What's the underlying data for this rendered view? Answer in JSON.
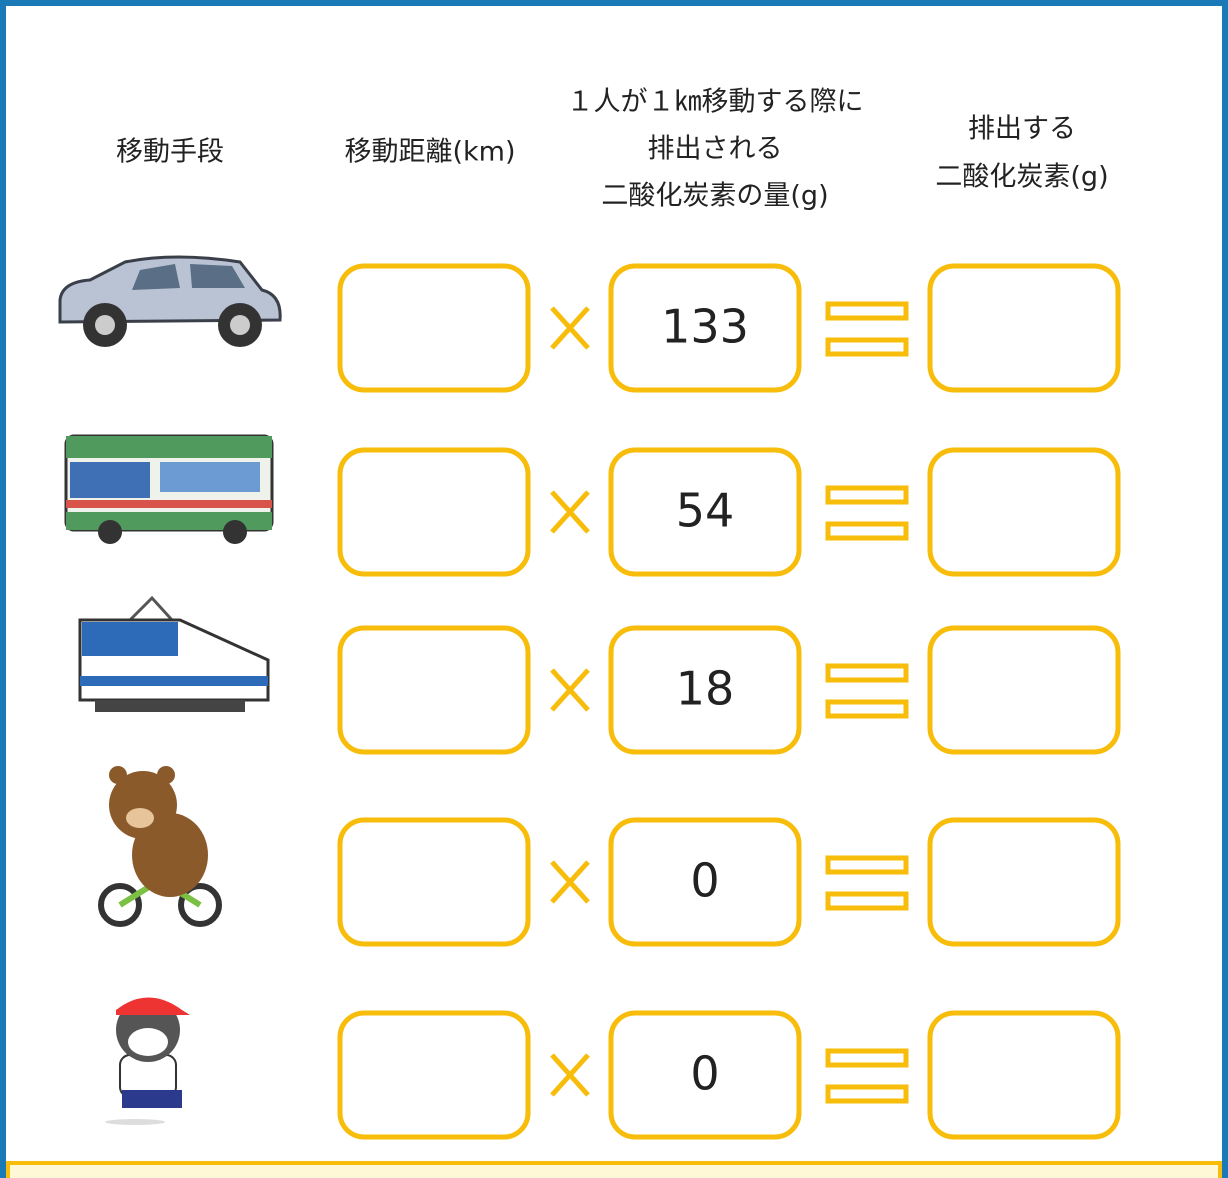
{
  "header": {
    "columns": [
      {
        "lines": [
          "移動手段"
        ]
      },
      {
        "lines": [
          "移動距離(km)"
        ]
      },
      {
        "lines": [
          "１人が１㎞移動する際に",
          "排出される",
          "二酸化炭素の量(g)"
        ]
      },
      {
        "lines": [
          "排出する",
          "二酸化炭素(g)"
        ]
      }
    ]
  },
  "rows": [
    {
      "factor": 133
    },
    {
      "factor": 54
    },
    {
      "factor": 18
    },
    {
      "factor": 0
    },
    {
      "factor": 0
    }
  ]
}
